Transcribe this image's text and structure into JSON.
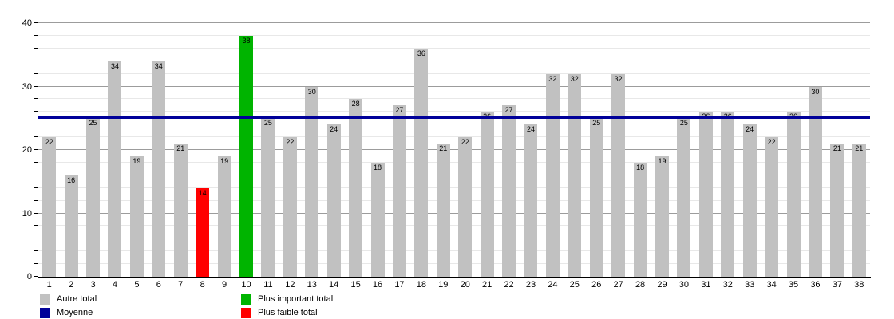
{
  "chart_data": {
    "type": "bar",
    "title": "",
    "xlabel": "",
    "ylabel": "",
    "categories": [
      "1",
      "2",
      "3",
      "4",
      "5",
      "6",
      "7",
      "8",
      "9",
      "10",
      "11",
      "12",
      "13",
      "14",
      "15",
      "16",
      "17",
      "18",
      "19",
      "20",
      "21",
      "22",
      "23",
      "24",
      "25",
      "26",
      "27",
      "28",
      "29",
      "30",
      "31",
      "32",
      "33",
      "34",
      "35",
      "36",
      "37",
      "38"
    ],
    "values": [
      22,
      16,
      25,
      34,
      19,
      34,
      21,
      14,
      19,
      38,
      25,
      22,
      30,
      24,
      28,
      18,
      27,
      36,
      21,
      22,
      26,
      27,
      24,
      32,
      32,
      25,
      32,
      18,
      19,
      25,
      26,
      26,
      24,
      22,
      26,
      30,
      21,
      21
    ],
    "max_index": 9,
    "min_index": 7,
    "average_line": {
      "value": 25,
      "label": "Moyenne"
    },
    "ylim": [
      0,
      40
    ],
    "y_major_ticks": [
      0,
      10,
      20,
      30,
      40
    ],
    "y_minor_step": 2,
    "grid": true,
    "legend_position": "bottom",
    "colors": {
      "bar_default": "#c1c1c1",
      "bar_max": "#00b400",
      "bar_min": "#ff0000",
      "average_line": "#000099",
      "grid_minor": "#e8e8e8",
      "grid_major": "#9c9c9c",
      "axis": "#000000",
      "value_label": "#000000"
    },
    "legend": [
      {
        "label": "Autre total",
        "color_key": "bar_default"
      },
      {
        "label": "Moyenne",
        "color_key": "average_line"
      },
      {
        "label": "Plus important total",
        "color_key": "bar_max"
      },
      {
        "label": "Plus faible total",
        "color_key": "bar_min"
      }
    ]
  }
}
